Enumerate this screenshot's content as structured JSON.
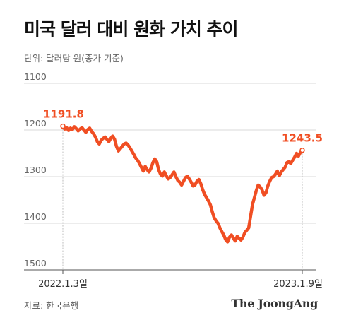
{
  "title": "미국 달러 대비 원화 가치 추이",
  "unit_label": "단위: 달러당 원(종가 기준)",
  "source": "자료: 한국은행",
  "brand": "The JoongAng",
  "chart_data": {
    "type": "line",
    "y_inverted": true,
    "ylim": [
      1100,
      1500
    ],
    "yticks": [
      "1100",
      "1200",
      "1300",
      "1400",
      "1500"
    ],
    "x_start_label": "2022.1.3일",
    "x_end_label": "2023.1.9일",
    "start_value": 1191.8,
    "end_value": 1243.5,
    "start_value_label": "1191.8",
    "end_value_label": "1243.5",
    "line_color": "#f04e23",
    "series": [
      {
        "values": [
          1191.8,
          1198,
          1195,
          1201,
          1196,
          1199,
          1193,
          1197,
          1202,
          1198,
          1195,
          1200,
          1205,
          1199,
          1196,
          1203,
          1208,
          1215,
          1225,
          1230,
          1222,
          1218,
          1215,
          1220,
          1225,
          1218,
          1213,
          1220,
          1235,
          1245,
          1240,
          1235,
          1230,
          1228,
          1232,
          1238,
          1245,
          1252,
          1260,
          1265,
          1272,
          1280,
          1288,
          1278,
          1285,
          1290,
          1282,
          1270,
          1262,
          1268,
          1285,
          1295,
          1299,
          1290,
          1298,
          1305,
          1302,
          1296,
          1290,
          1300,
          1308,
          1312,
          1318,
          1310,
          1302,
          1299,
          1305,
          1312,
          1320,
          1318,
          1310,
          1306,
          1315,
          1328,
          1338,
          1345,
          1352,
          1360,
          1375,
          1388,
          1395,
          1400,
          1410,
          1418,
          1425,
          1435,
          1440,
          1430,
          1425,
          1432,
          1438,
          1428,
          1432,
          1436,
          1430,
          1420,
          1415,
          1410,
          1385,
          1360,
          1345,
          1330,
          1318,
          1322,
          1328,
          1340,
          1335,
          1320,
          1310,
          1302,
          1300,
          1295,
          1288,
          1298,
          1290,
          1285,
          1280,
          1270,
          1268,
          1272,
          1265,
          1258,
          1250,
          1256,
          1248,
          1243.5
        ]
      }
    ]
  }
}
